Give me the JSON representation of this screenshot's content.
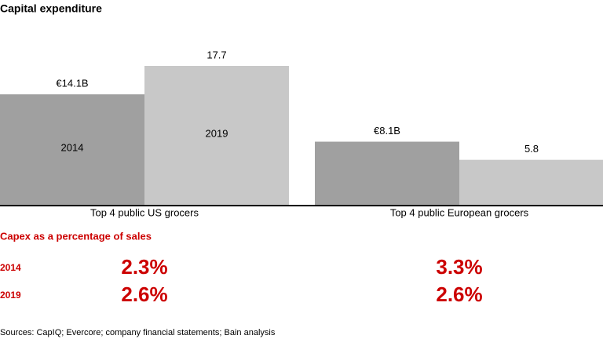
{
  "chart_data": {
    "type": "bar",
    "title": "Capital expenditure",
    "categories": [
      "Top 4 public US grocers",
      "Top 4 public European grocers"
    ],
    "series": [
      {
        "name": "2014",
        "color": "#a0a0a0",
        "values": [
          14.1,
          8.1
        ],
        "value_labels": [
          "€14.1B",
          "€8.1B"
        ]
      },
      {
        "name": "2019",
        "color": "#c8c8c8",
        "values": [
          17.7,
          5.8
        ],
        "value_labels": [
          "17.7",
          "5.8"
        ]
      }
    ]
  },
  "capex_table": {
    "title": "Capex as a percentage of sales",
    "rows": [
      {
        "label": "2014",
        "values": [
          "2.3%",
          "3.3%"
        ]
      },
      {
        "label": "2019",
        "values": [
          "2.6%",
          "2.6%"
        ]
      }
    ]
  },
  "source": "Sources: CapIQ; Evercore; company financial statements; Bain analysis"
}
